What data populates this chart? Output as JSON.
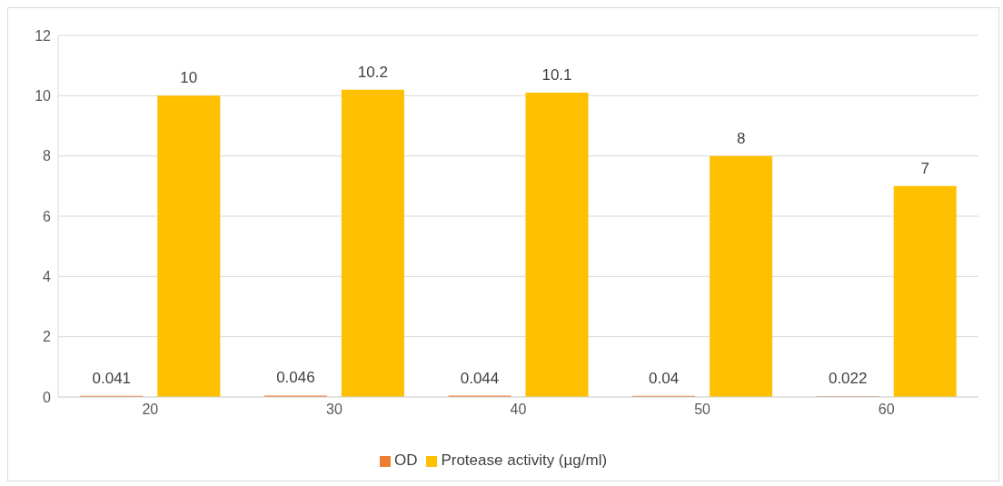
{
  "chart_data": {
    "type": "bar",
    "categories": [
      "20",
      "30",
      "40",
      "50",
      "60"
    ],
    "series": [
      {
        "name": "OD",
        "color": "#ed7d31",
        "values": [
          0.041,
          0.046,
          0.044,
          0.04,
          0.022
        ]
      },
      {
        "name": "Protease activity (µg/ml)",
        "color": "#ffc000",
        "values": [
          10,
          10.2,
          10.1,
          8,
          7
        ]
      }
    ],
    "ylim": [
      0,
      12
    ],
    "yticks": [
      0,
      2,
      4,
      6,
      8,
      10,
      12
    ],
    "grid": "y",
    "legend": "bottom",
    "data_labels": true
  }
}
